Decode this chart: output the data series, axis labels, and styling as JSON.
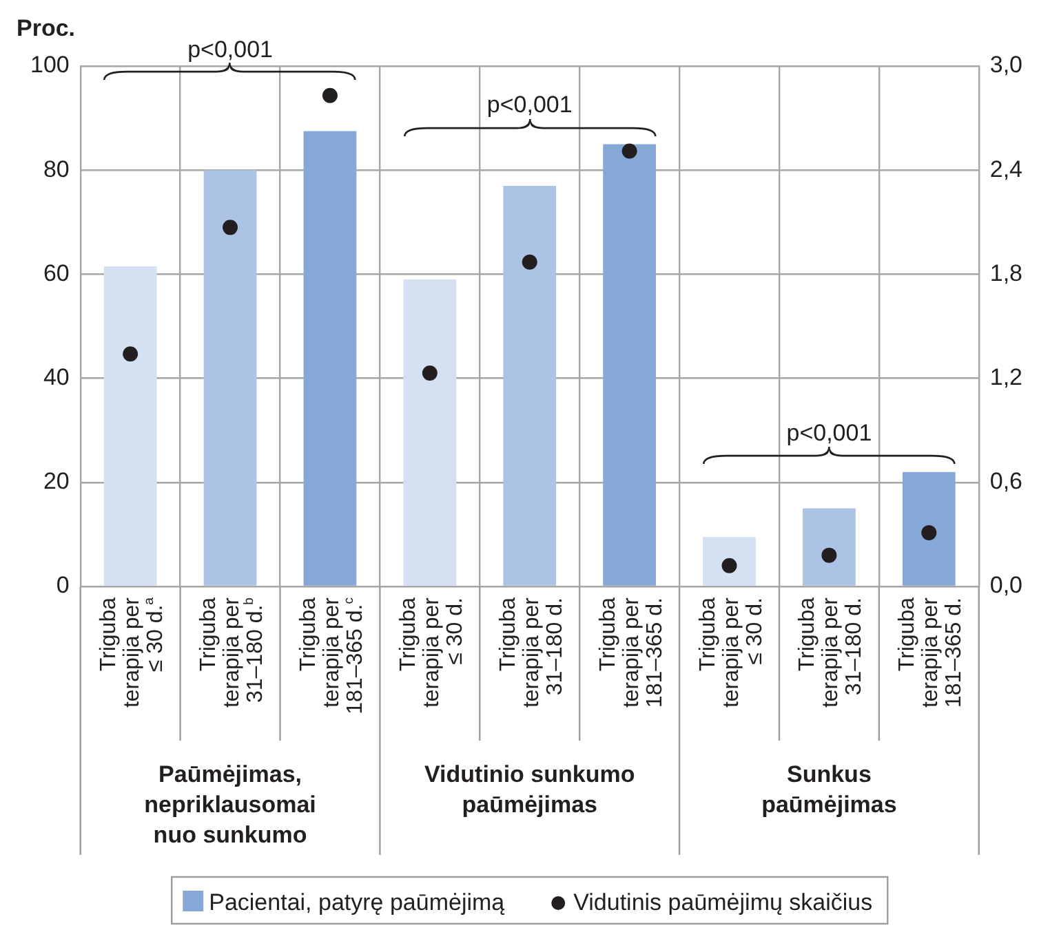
{
  "chart_data": {
    "type": "bar",
    "ylabel": "Proc.",
    "categories": [
      "Triguba terapija per ≤ 30 d.$^{a}$",
      "Triguba terapija per 31–180 d.$^{b}$",
      "Triguba terapija per 181–365 d.$^{c}$",
      "Triguba terapija per ≤ 30 d.",
      "Triguba terapija per 31–180 d.",
      "Triguba terapija per 181–365 d.",
      "Triguba terapija per ≤ 30 d.",
      "Triguba terapija per 31–180 d.",
      "Triguba terapija per 181–365 d."
    ],
    "series": [
      {
        "name": "Pacientai, patyrę paūmėjimą",
        "color": "#85a8d7",
        "colors": [
          "#d4e1f2",
          "#adc3e5",
          "#85a8d7",
          "#d4e1f2",
          "#adc3e5",
          "#85a8d7",
          "#d4e1f2",
          "#adc3e5",
          "#85a8d7"
        ],
        "values": [
          61.5,
          80,
          87.5,
          59,
          77,
          85,
          9.5,
          15,
          22
        ]
      },
      {
        "name": "Vidutinis paūmėjimų skaičius",
        "type": "scatter",
        "axis": "y2",
        "marker": "circle",
        "color": "#231f20",
        "values": [
          1.34,
          2.07,
          2.83,
          1.23,
          1.87,
          2.51,
          0.12,
          0.18,
          0.31
        ]
      }
    ],
    "ylim": [
      0,
      100
    ],
    "yticks": [
      0,
      20,
      40,
      60,
      80,
      100
    ],
    "y2lim": [
      0,
      3
    ],
    "y2ticks": [
      {
        "value": 0,
        "label": "0,0"
      },
      {
        "value": 0.6,
        "label": "0,6"
      },
      {
        "value": 1.2,
        "label": "1,2"
      },
      {
        "value": 1.8,
        "label": "1,8"
      },
      {
        "value": 2.4,
        "label": "2,4"
      },
      {
        "value": 3,
        "label": "3,0"
      }
    ],
    "grid": true,
    "legend": "bottom",
    "annotations": [
      "Paūmėjimas, nepriklausomai nuo sunkumo",
      "Vidutinio sunkumo paūmėjimas",
      "Sunkus paūmėjimas",
      "p<0,001",
      "p<0,001",
      "p<0,001"
    ]
  }
}
